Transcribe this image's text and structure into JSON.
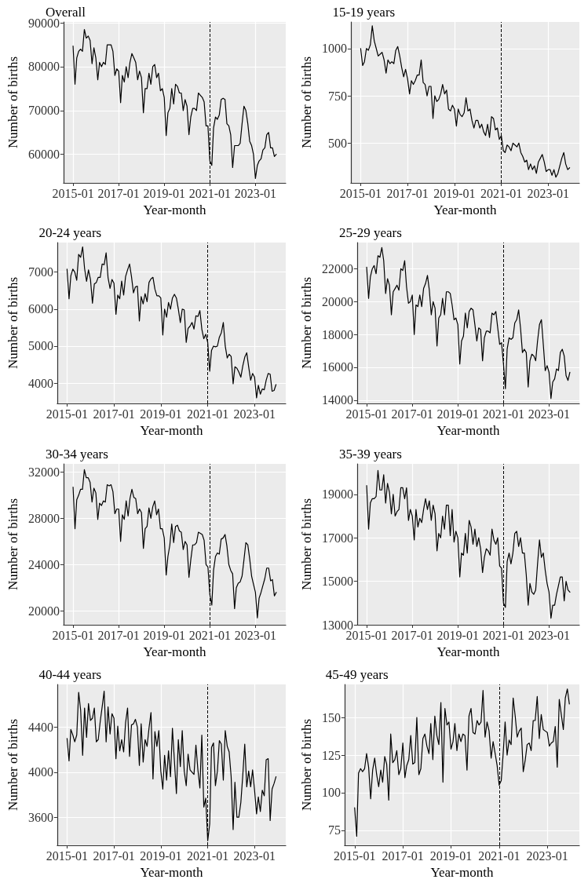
{
  "chart_data": [
    {
      "type": "line",
      "title": "Overall",
      "xlabel": "Year-month",
      "ylabel": "Number of births",
      "color": "#000000",
      "grid": true,
      "marker": "none",
      "xlim": [
        "2014-08",
        "2024-05"
      ],
      "xticks": [
        "2015-01",
        "2017-01",
        "2019-01",
        "2021-01",
        "2023-01"
      ],
      "ylim": [
        53500,
        90200
      ],
      "yticks": [
        60000,
        70000,
        80000,
        90000
      ],
      "ref_lines": [
        {
          "axis": "x",
          "value": "2021-01",
          "line_style": "dashed",
          "color": "#000000"
        }
      ],
      "x": [
        "2015-01",
        "2015-02",
        "2015-03",
        "2015-04",
        "2015-05",
        "2015-06",
        "2015-07",
        "2015-08",
        "2015-09",
        "2015-10",
        "2015-11",
        "2015-12",
        "2016-01",
        "2016-02",
        "2016-03",
        "2016-04",
        "2016-05",
        "2016-06",
        "2016-07",
        "2016-08",
        "2016-09",
        "2016-10",
        "2016-11",
        "2016-12",
        "2017-01",
        "2017-02",
        "2017-03",
        "2017-04",
        "2017-05",
        "2017-06",
        "2017-07",
        "2017-08",
        "2017-09",
        "2017-10",
        "2017-11",
        "2017-12",
        "2018-01",
        "2018-02",
        "2018-03",
        "2018-04",
        "2018-05",
        "2018-06",
        "2018-07",
        "2018-08",
        "2018-09",
        "2018-10",
        "2018-11",
        "2018-12",
        "2019-01",
        "2019-02",
        "2019-03",
        "2019-04",
        "2019-05",
        "2019-06",
        "2019-07",
        "2019-08",
        "2019-09",
        "2019-10",
        "2019-11",
        "2019-12",
        "2020-01",
        "2020-02",
        "2020-03",
        "2020-04",
        "2020-05",
        "2020-06",
        "2020-07",
        "2020-08",
        "2020-09",
        "2020-10",
        "2020-11",
        "2020-12",
        "2021-01",
        "2021-02",
        "2021-03",
        "2021-04",
        "2021-05",
        "2021-06",
        "2021-07",
        "2021-08",
        "2021-09",
        "2021-10",
        "2021-11",
        "2021-12",
        "2022-01",
        "2022-02",
        "2022-03",
        "2022-04",
        "2022-05",
        "2022-06",
        "2022-07",
        "2022-08",
        "2022-09",
        "2022-10",
        "2022-11",
        "2022-12",
        "2023-01",
        "2023-02",
        "2023-03",
        "2023-04",
        "2023-05",
        "2023-06",
        "2023-07",
        "2023-08",
        "2023-09",
        "2023-10",
        "2023-11",
        "2023-12"
      ],
      "values": [
        84700,
        76000,
        82000,
        83500,
        84000,
        83500,
        88500,
        86500,
        87000,
        86000,
        80700,
        84300,
        82000,
        77000,
        81000,
        80000,
        81000,
        80500,
        85000,
        85000,
        85000,
        83500,
        78000,
        79500,
        79000,
        71800,
        78000,
        76500,
        80000,
        77500,
        81000,
        83000,
        82000,
        81000,
        77000,
        79000,
        77500,
        69500,
        75000,
        75000,
        78500,
        76000,
        80000,
        80500,
        77500,
        78500,
        74500,
        75000,
        73000,
        64300,
        69500,
        70500,
        75000,
        71500,
        76000,
        75500,
        74000,
        74000,
        70000,
        72500,
        71000,
        64500,
        68500,
        70500,
        70500,
        70000,
        74000,
        73500,
        73000,
        72000,
        66500,
        66500,
        58500,
        57500,
        66000,
        68500,
        68000,
        69000,
        72500,
        72800,
        72500,
        67000,
        66500,
        64500,
        57000,
        62000,
        62000,
        62000,
        62500,
        67000,
        71000,
        70000,
        67000,
        63000,
        62000,
        60000,
        54500,
        57500,
        58500,
        59000,
        61000,
        61500,
        64500,
        65000,
        61500,
        61500,
        59500,
        60000
      ]
    },
    {
      "type": "line",
      "title": "15-19 years",
      "xlabel": "Year-month",
      "ylabel": "Number of births",
      "color": "#000000",
      "grid": true,
      "marker": "none",
      "xlim": [
        "2014-08",
        "2024-05"
      ],
      "xticks": [
        "2015-01",
        "2017-01",
        "2019-01",
        "2021-01",
        "2023-01"
      ],
      "ylim": [
        290,
        1140
      ],
      "yticks": [
        500,
        750,
        1000
      ],
      "ref_lines": [
        {
          "axis": "x",
          "value": "2021-01",
          "line_style": "dashed",
          "color": "#000000"
        }
      ],
      "x": [
        "2015-01",
        "2015-02",
        "2015-03",
        "2015-04",
        "2015-05",
        "2015-06",
        "2015-07",
        "2015-08",
        "2015-09",
        "2015-10",
        "2015-11",
        "2015-12",
        "2016-01",
        "2016-02",
        "2016-03",
        "2016-04",
        "2016-05",
        "2016-06",
        "2016-07",
        "2016-08",
        "2016-09",
        "2016-10",
        "2016-11",
        "2016-12",
        "2017-01",
        "2017-02",
        "2017-03",
        "2017-04",
        "2017-05",
        "2017-06",
        "2017-07",
        "2017-08",
        "2017-09",
        "2017-10",
        "2017-11",
        "2017-12",
        "2018-01",
        "2018-02",
        "2018-03",
        "2018-04",
        "2018-05",
        "2018-06",
        "2018-07",
        "2018-08",
        "2018-09",
        "2018-10",
        "2018-11",
        "2018-12",
        "2019-01",
        "2019-02",
        "2019-03",
        "2019-04",
        "2019-05",
        "2019-06",
        "2019-07",
        "2019-08",
        "2019-09",
        "2019-10",
        "2019-11",
        "2019-12",
        "2020-01",
        "2020-02",
        "2020-03",
        "2020-04",
        "2020-05",
        "2020-06",
        "2020-07",
        "2020-08",
        "2020-09",
        "2020-10",
        "2020-11",
        "2020-12",
        "2021-01",
        "2021-02",
        "2021-03",
        "2021-04",
        "2021-05",
        "2021-06",
        "2021-07",
        "2021-08",
        "2021-09",
        "2021-10",
        "2021-11",
        "2021-12",
        "2022-01",
        "2022-02",
        "2022-03",
        "2022-04",
        "2022-05",
        "2022-06",
        "2022-07",
        "2022-08",
        "2022-09",
        "2022-10",
        "2022-11",
        "2022-12",
        "2023-01",
        "2023-02",
        "2023-03",
        "2023-04",
        "2023-05",
        "2023-06",
        "2023-07",
        "2023-08",
        "2023-09",
        "2023-10",
        "2023-11",
        "2023-12"
      ],
      "values": [
        1000,
        910,
        930,
        1000,
        990,
        1020,
        1120,
        1040,
        1000,
        960,
        970,
        980,
        940,
        870,
        940,
        920,
        930,
        920,
        990,
        1010,
        960,
        900,
        850,
        890,
        840,
        760,
        830,
        810,
        830,
        860,
        860,
        940,
        820,
        810,
        750,
        800,
        800,
        630,
        750,
        720,
        730,
        760,
        810,
        760,
        780,
        680,
        670,
        700,
        680,
        590,
        680,
        650,
        640,
        660,
        740,
        670,
        680,
        620,
        580,
        620,
        620,
        580,
        600,
        560,
        540,
        600,
        530,
        640,
        630,
        570,
        580,
        520,
        540,
        460,
        450,
        490,
        480,
        460,
        500,
        490,
        480,
        500,
        450,
        430,
        400,
        410,
        360,
        390,
        360,
        380,
        340,
        400,
        420,
        440,
        400,
        350,
        360,
        360,
        330,
        360,
        320,
        340,
        380,
        420,
        450,
        390,
        360,
        370
      ]
    },
    {
      "type": "line",
      "title": "20-24 years",
      "xlabel": "Year-month",
      "ylabel": "Number of births",
      "color": "#000000",
      "grid": true,
      "marker": "none",
      "xlim": [
        "2014-08",
        "2024-05"
      ],
      "xticks": [
        "2015-01",
        "2017-01",
        "2019-01",
        "2021-01",
        "2023-01"
      ],
      "ylim": [
        3450,
        7800
      ],
      "yticks": [
        4000,
        5000,
        6000,
        7000
      ],
      "ref_lines": [
        {
          "axis": "x",
          "value": "2021-01",
          "line_style": "dashed",
          "color": "#000000"
        }
      ],
      "x": [
        "2015-01",
        "2015-02",
        "2015-03",
        "2015-04",
        "2015-05",
        "2015-06",
        "2015-07",
        "2015-08",
        "2015-09",
        "2015-10",
        "2015-11",
        "2015-12",
        "2016-01",
        "2016-02",
        "2016-03",
        "2016-04",
        "2016-05",
        "2016-06",
        "2016-07",
        "2016-08",
        "2016-09",
        "2016-10",
        "2016-11",
        "2016-12",
        "2017-01",
        "2017-02",
        "2017-03",
        "2017-04",
        "2017-05",
        "2017-06",
        "2017-07",
        "2017-08",
        "2017-09",
        "2017-10",
        "2017-11",
        "2017-12",
        "2018-01",
        "2018-02",
        "2018-03",
        "2018-04",
        "2018-05",
        "2018-06",
        "2018-07",
        "2018-08",
        "2018-09",
        "2018-10",
        "2018-11",
        "2018-12",
        "2019-01",
        "2019-02",
        "2019-03",
        "2019-04",
        "2019-05",
        "2019-06",
        "2019-07",
        "2019-08",
        "2019-09",
        "2019-10",
        "2019-11",
        "2019-12",
        "2020-01",
        "2020-02",
        "2020-03",
        "2020-04",
        "2020-05",
        "2020-06",
        "2020-07",
        "2020-08",
        "2020-09",
        "2020-10",
        "2020-11",
        "2020-12",
        "2021-01",
        "2021-02",
        "2021-03",
        "2021-04",
        "2021-05",
        "2021-06",
        "2021-07",
        "2021-08",
        "2021-09",
        "2021-10",
        "2021-11",
        "2021-12",
        "2022-01",
        "2022-02",
        "2022-03",
        "2022-04",
        "2022-05",
        "2022-06",
        "2022-07",
        "2022-08",
        "2022-09",
        "2022-10",
        "2022-11",
        "2022-12",
        "2023-01",
        "2023-02",
        "2023-03",
        "2023-04",
        "2023-05",
        "2023-06",
        "2023-07",
        "2023-08",
        "2023-09",
        "2023-10",
        "2023-11",
        "2023-12"
      ],
      "values": [
        7080,
        6280,
        6900,
        7080,
        7000,
        6780,
        7480,
        7400,
        7680,
        7100,
        6750,
        7060,
        6800,
        6160,
        6680,
        6720,
        6860,
        6860,
        7220,
        7200,
        7520,
        6850,
        6560,
        6800,
        6700,
        5860,
        6380,
        6280,
        6760,
        6380,
        6880,
        7060,
        7220,
        6880,
        6440,
        6600,
        6620,
        5680,
        6340,
        6140,
        6420,
        6200,
        6720,
        6820,
        6860,
        6540,
        6360,
        6360,
        6300,
        5300,
        6000,
        5780,
        6180,
        6000,
        6300,
        6400,
        6300,
        6000,
        5640,
        6000,
        5980,
        5100,
        5480,
        5540,
        5640,
        5460,
        5820,
        5800,
        5960,
        5460,
        5200,
        5320,
        5100,
        4320,
        4880,
        5000,
        4980,
        5000,
        5240,
        5360,
        5640,
        5000,
        4680,
        4780,
        4720,
        3980,
        4440,
        4400,
        4300,
        4160,
        4460,
        4700,
        4820,
        4440,
        4080,
        4260,
        4160,
        3600,
        3940,
        3700,
        3840,
        3820,
        4080,
        4260,
        4240,
        3780,
        3800,
        3960
      ]
    },
    {
      "type": "line",
      "title": "25-29 years",
      "xlabel": "Year-month",
      "ylabel": "Number of births",
      "color": "#000000",
      "grid": true,
      "marker": "none",
      "xlim": [
        "2014-08",
        "2024-05"
      ],
      "xticks": [
        "2015-01",
        "2017-01",
        "2019-01",
        "2021-01",
        "2023-01"
      ],
      "ylim": [
        13800,
        23600
      ],
      "yticks": [
        14000,
        16000,
        18000,
        20000,
        22000
      ],
      "ref_lines": [
        {
          "axis": "x",
          "value": "2021-01",
          "line_style": "dashed",
          "color": "#000000"
        }
      ],
      "x": [
        "2015-01",
        "2015-02",
        "2015-03",
        "2015-04",
        "2015-05",
        "2015-06",
        "2015-07",
        "2015-08",
        "2015-09",
        "2015-10",
        "2015-11",
        "2015-12",
        "2016-01",
        "2016-02",
        "2016-03",
        "2016-04",
        "2016-05",
        "2016-06",
        "2016-07",
        "2016-08",
        "2016-09",
        "2016-10",
        "2016-11",
        "2016-12",
        "2017-01",
        "2017-02",
        "2017-03",
        "2017-04",
        "2017-05",
        "2017-06",
        "2017-07",
        "2017-08",
        "2017-09",
        "2017-10",
        "2017-11",
        "2017-12",
        "2018-01",
        "2018-02",
        "2018-03",
        "2018-04",
        "2018-05",
        "2018-06",
        "2018-07",
        "2018-08",
        "2018-09",
        "2018-10",
        "2018-11",
        "2018-12",
        "2019-01",
        "2019-02",
        "2019-03",
        "2019-04",
        "2019-05",
        "2019-06",
        "2019-07",
        "2019-08",
        "2019-09",
        "2019-10",
        "2019-11",
        "2019-12",
        "2020-01",
        "2020-02",
        "2020-03",
        "2020-04",
        "2020-05",
        "2020-06",
        "2020-07",
        "2020-08",
        "2020-09",
        "2020-10",
        "2020-11",
        "2020-12",
        "2021-01",
        "2021-02",
        "2021-03",
        "2021-04",
        "2021-05",
        "2021-06",
        "2021-07",
        "2021-08",
        "2021-09",
        "2021-10",
        "2021-11",
        "2021-12",
        "2022-01",
        "2022-02",
        "2022-03",
        "2022-04",
        "2022-05",
        "2022-06",
        "2022-07",
        "2022-08",
        "2022-09",
        "2022-10",
        "2022-11",
        "2022-12",
        "2023-01",
        "2023-02",
        "2023-03",
        "2023-04",
        "2023-05",
        "2023-06",
        "2023-07",
        "2023-08",
        "2023-09",
        "2023-10",
        "2023-11",
        "2023-12"
      ],
      "values": [
        22100,
        20200,
        21500,
        22000,
        22200,
        21700,
        22800,
        22700,
        23300,
        22500,
        20500,
        21400,
        21000,
        19200,
        20600,
        20800,
        21000,
        20700,
        22000,
        21900,
        22500,
        20900,
        19900,
        20000,
        20400,
        18000,
        19800,
        19700,
        20400,
        19700,
        20800,
        21100,
        21600,
        20700,
        19200,
        20000,
        19600,
        17300,
        19000,
        19200,
        20200,
        19200,
        20600,
        20600,
        20500,
        19800,
        18900,
        19000,
        18600,
        16200,
        17600,
        17900,
        19300,
        18400,
        19400,
        19600,
        19500,
        18600,
        17600,
        18400,
        18300,
        16400,
        17800,
        18200,
        18200,
        18100,
        19300,
        19200,
        19400,
        18400,
        17400,
        17500,
        16200,
        14700,
        17100,
        17800,
        17700,
        17800,
        18700,
        18900,
        19500,
        18400,
        16900,
        17100,
        16900,
        14800,
        16400,
        16800,
        16700,
        16400,
        17600,
        18600,
        18900,
        17400,
        15800,
        16100,
        15700,
        14100,
        15100,
        15300,
        15900,
        15800,
        16900,
        17100,
        16700,
        15500,
        15200,
        15700
      ]
    },
    {
      "type": "line",
      "title": "30-34 years",
      "xlabel": "Year-month",
      "ylabel": "Number of births",
      "color": "#000000",
      "grid": true,
      "marker": "none",
      "xlim": [
        "2014-08",
        "2024-05"
      ],
      "xticks": [
        "2015-01",
        "2017-01",
        "2019-01",
        "2021-01",
        "2023-01"
      ],
      "ylim": [
        18800,
        32700
      ],
      "yticks": [
        20000,
        24000,
        28000,
        32000
      ],
      "ref_lines": [
        {
          "axis": "x",
          "value": "2021-01",
          "line_style": "dashed",
          "color": "#000000"
        }
      ],
      "x": [
        "2015-01",
        "2015-02",
        "2015-03",
        "2015-04",
        "2015-05",
        "2015-06",
        "2015-07",
        "2015-08",
        "2015-09",
        "2015-10",
        "2015-11",
        "2015-12",
        "2016-01",
        "2016-02",
        "2016-03",
        "2016-04",
        "2016-05",
        "2016-06",
        "2016-07",
        "2016-08",
        "2016-09",
        "2016-10",
        "2016-11",
        "2016-12",
        "2017-01",
        "2017-02",
        "2017-03",
        "2017-04",
        "2017-05",
        "2017-06",
        "2017-07",
        "2017-08",
        "2017-09",
        "2017-10",
        "2017-11",
        "2017-12",
        "2018-01",
        "2018-02",
        "2018-03",
        "2018-04",
        "2018-05",
        "2018-06",
        "2018-07",
        "2018-08",
        "2018-09",
        "2018-10",
        "2018-11",
        "2018-12",
        "2019-01",
        "2019-02",
        "2019-03",
        "2019-04",
        "2019-05",
        "2019-06",
        "2019-07",
        "2019-08",
        "2019-09",
        "2019-10",
        "2019-11",
        "2019-12",
        "2020-01",
        "2020-02",
        "2020-03",
        "2020-04",
        "2020-05",
        "2020-06",
        "2020-07",
        "2020-08",
        "2020-09",
        "2020-10",
        "2020-11",
        "2020-12",
        "2021-01",
        "2021-02",
        "2021-03",
        "2021-04",
        "2021-05",
        "2021-06",
        "2021-07",
        "2021-08",
        "2021-09",
        "2021-10",
        "2021-11",
        "2021-12",
        "2022-01",
        "2022-02",
        "2022-03",
        "2022-04",
        "2022-05",
        "2022-06",
        "2022-07",
        "2022-08",
        "2022-09",
        "2022-10",
        "2022-11",
        "2022-12",
        "2023-01",
        "2023-02",
        "2023-03",
        "2023-04",
        "2023-05",
        "2023-06",
        "2023-07",
        "2023-08",
        "2023-09",
        "2023-10",
        "2023-11",
        "2023-12"
      ],
      "values": [
        30700,
        27100,
        29600,
        30000,
        30500,
        30500,
        32200,
        31500,
        31500,
        31100,
        29400,
        30600,
        30200,
        27900,
        29300,
        29100,
        29500,
        29400,
        30900,
        30800,
        30900,
        30300,
        28400,
        28800,
        28800,
        26000,
        28300,
        27900,
        29500,
        28200,
        29700,
        30500,
        29800,
        29700,
        28400,
        28800,
        28500,
        25400,
        27100,
        27300,
        28900,
        28000,
        29000,
        29500,
        28300,
        28800,
        27100,
        27100,
        26300,
        23100,
        24700,
        25700,
        27500,
        25900,
        27300,
        27400,
        26900,
        26800,
        25300,
        26000,
        25700,
        22900,
        24400,
        25700,
        25700,
        25900,
        26800,
        26700,
        26600,
        26100,
        24000,
        23800,
        21400,
        20500,
        23500,
        24700,
        25000,
        24900,
        26200,
        26300,
        26600,
        25600,
        24000,
        23500,
        23200,
        20200,
        22000,
        22400,
        22500,
        23000,
        24400,
        25900,
        25700,
        24500,
        23000,
        22300,
        21600,
        19400,
        21100,
        21600,
        22200,
        22800,
        23700,
        23700,
        22600,
        22700,
        21300,
        21600
      ]
    },
    {
      "type": "line",
      "title": "35-39 years",
      "xlabel": "Year-month",
      "ylabel": "Number of births",
      "color": "#000000",
      "grid": true,
      "marker": "none",
      "xlim": [
        "2014-08",
        "2024-05"
      ],
      "xticks": [
        "2015-01",
        "2017-01",
        "2019-01",
        "2021-01",
        "2023-01"
      ],
      "ylim": [
        13000,
        20400
      ],
      "yticks": [
        13000,
        15000,
        17000,
        19000
      ],
      "ref_lines": [
        {
          "axis": "x",
          "value": "2021-01",
          "line_style": "dashed",
          "color": "#000000"
        }
      ],
      "x": [
        "2015-01",
        "2015-02",
        "2015-03",
        "2015-04",
        "2015-05",
        "2015-06",
        "2015-07",
        "2015-08",
        "2015-09",
        "2015-10",
        "2015-11",
        "2015-12",
        "2016-01",
        "2016-02",
        "2016-03",
        "2016-04",
        "2016-05",
        "2016-06",
        "2016-07",
        "2016-08",
        "2016-09",
        "2016-10",
        "2016-11",
        "2016-12",
        "2017-01",
        "2017-02",
        "2017-03",
        "2017-04",
        "2017-05",
        "2017-06",
        "2017-07",
        "2017-08",
        "2017-09",
        "2017-10",
        "2017-11",
        "2017-12",
        "2018-01",
        "2018-02",
        "2018-03",
        "2018-04",
        "2018-05",
        "2018-06",
        "2018-07",
        "2018-08",
        "2018-09",
        "2018-10",
        "2018-11",
        "2018-12",
        "2019-01",
        "2019-02",
        "2019-03",
        "2019-04",
        "2019-05",
        "2019-06",
        "2019-07",
        "2019-08",
        "2019-09",
        "2019-10",
        "2019-11",
        "2019-12",
        "2020-01",
        "2020-02",
        "2020-03",
        "2020-04",
        "2020-05",
        "2020-06",
        "2020-07",
        "2020-08",
        "2020-09",
        "2020-10",
        "2020-11",
        "2020-12",
        "2021-01",
        "2021-02",
        "2021-03",
        "2021-04",
        "2021-05",
        "2021-06",
        "2021-07",
        "2021-08",
        "2021-09",
        "2021-10",
        "2021-11",
        "2021-12",
        "2022-01",
        "2022-02",
        "2022-03",
        "2022-04",
        "2022-05",
        "2022-06",
        "2022-07",
        "2022-08",
        "2022-09",
        "2022-10",
        "2022-11",
        "2022-12",
        "2023-01",
        "2023-02",
        "2023-03",
        "2023-04",
        "2023-05",
        "2023-06",
        "2023-07",
        "2023-08",
        "2023-09",
        "2023-10",
        "2023-11",
        "2023-12"
      ],
      "values": [
        19400,
        17400,
        18600,
        18800,
        18800,
        18900,
        20100,
        19200,
        19200,
        19900,
        18600,
        19500,
        19100,
        18100,
        19000,
        18000,
        18200,
        18300,
        19300,
        19300,
        18800,
        19300,
        17800,
        18300,
        18000,
        16900,
        18300,
        17500,
        17900,
        17700,
        18300,
        18800,
        18300,
        18700,
        17800,
        18500,
        18100,
        16400,
        17200,
        17000,
        18000,
        17400,
        18500,
        18500,
        17100,
        18300,
        16800,
        17300,
        17000,
        15200,
        16300,
        16200,
        17200,
        16300,
        17800,
        17500,
        16700,
        17400,
        16600,
        17000,
        16500,
        15400,
        16100,
        16500,
        16400,
        16200,
        17400,
        16900,
        16700,
        17000,
        15700,
        15600,
        14000,
        13800,
        15900,
        16300,
        15800,
        16300,
        17200,
        17300,
        16600,
        17000,
        16300,
        16300,
        15300,
        13900,
        14900,
        14500,
        14400,
        14600,
        15800,
        16900,
        16100,
        16300,
        15500,
        14900,
        14500,
        13300,
        13900,
        13900,
        14400,
        14800,
        15200,
        15200,
        14100,
        15000,
        14600,
        14500
      ]
    },
    {
      "type": "line",
      "title": "40-44 years",
      "xlabel": "Year-month",
      "ylabel": "Number of births",
      "color": "#000000",
      "grid": true,
      "marker": "none",
      "xlim": [
        "2014-08",
        "2024-05"
      ],
      "xticks": [
        "2015-01",
        "2017-01",
        "2019-01",
        "2021-01",
        "2023-01"
      ],
      "ylim": [
        3350,
        4780
      ],
      "yticks": [
        3600,
        4000,
        4400
      ],
      "ref_lines": [
        {
          "axis": "x",
          "value": "2021-01",
          "line_style": "dashed",
          "color": "#000000"
        }
      ],
      "x": [
        "2015-01",
        "2015-02",
        "2015-03",
        "2015-04",
        "2015-05",
        "2015-06",
        "2015-07",
        "2015-08",
        "2015-09",
        "2015-10",
        "2015-11",
        "2015-12",
        "2016-01",
        "2016-02",
        "2016-03",
        "2016-04",
        "2016-05",
        "2016-06",
        "2016-07",
        "2016-08",
        "2016-09",
        "2016-10",
        "2016-11",
        "2016-12",
        "2017-01",
        "2017-02",
        "2017-03",
        "2017-04",
        "2017-05",
        "2017-06",
        "2017-07",
        "2017-08",
        "2017-09",
        "2017-10",
        "2017-11",
        "2017-12",
        "2018-01",
        "2018-02",
        "2018-03",
        "2018-04",
        "2018-05",
        "2018-06",
        "2018-07",
        "2018-08",
        "2018-09",
        "2018-10",
        "2018-11",
        "2018-12",
        "2019-01",
        "2019-02",
        "2019-03",
        "2019-04",
        "2019-05",
        "2019-06",
        "2019-07",
        "2019-08",
        "2019-09",
        "2019-10",
        "2019-11",
        "2019-12",
        "2020-01",
        "2020-02",
        "2020-03",
        "2020-04",
        "2020-05",
        "2020-06",
        "2020-07",
        "2020-08",
        "2020-09",
        "2020-10",
        "2020-11",
        "2020-12",
        "2021-01",
        "2021-02",
        "2021-03",
        "2021-04",
        "2021-05",
        "2021-06",
        "2021-07",
        "2021-08",
        "2021-09",
        "2021-10",
        "2021-11",
        "2021-12",
        "2022-01",
        "2022-02",
        "2022-03",
        "2022-04",
        "2022-05",
        "2022-06",
        "2022-07",
        "2022-08",
        "2022-09",
        "2022-10",
        "2022-11",
        "2022-12",
        "2023-01",
        "2023-02",
        "2023-03",
        "2023-04",
        "2023-05",
        "2023-06",
        "2023-07",
        "2023-08",
        "2023-09",
        "2023-10",
        "2023-11",
        "2023-12"
      ],
      "values": [
        4300,
        4100,
        4380,
        4330,
        4270,
        4330,
        4710,
        4550,
        4150,
        4570,
        4310,
        4610,
        4460,
        4480,
        4570,
        4270,
        4290,
        4450,
        4580,
        4720,
        4270,
        4580,
        4340,
        4520,
        4480,
        4120,
        4410,
        4190,
        4290,
        4180,
        4440,
        4570,
        4140,
        4420,
        4430,
        4470,
        4400,
        4060,
        4430,
        4090,
        4290,
        4230,
        4390,
        4530,
        3940,
        4360,
        4230,
        4370,
        4010,
        3850,
        4150,
        3930,
        4190,
        3960,
        4390,
        4100,
        3810,
        4290,
        4050,
        4370,
        4010,
        3880,
        4160,
        4020,
        4000,
        3980,
        4240,
        4020,
        3860,
        4330,
        3690,
        3770,
        3390,
        3540,
        4220,
        4260,
        3880,
        4010,
        4280,
        4250,
        3930,
        4370,
        4230,
        4180,
        3960,
        3490,
        3910,
        3600,
        3600,
        3730,
        3970,
        4250,
        3870,
        4010,
        3870,
        4020,
        3840,
        3630,
        3780,
        3650,
        3840,
        3790,
        4110,
        4120,
        3570,
        3850,
        3900,
        3960
      ]
    },
    {
      "type": "line",
      "title": "45-49 years",
      "xlabel": "Year-month",
      "ylabel": "Number of births",
      "color": "#000000",
      "grid": true,
      "marker": "none",
      "xlim": [
        "2014-08",
        "2024-05"
      ],
      "xticks": [
        "2015-01",
        "2017-01",
        "2019-01",
        "2021-01",
        "2023-01"
      ],
      "ylim": [
        65,
        172
      ],
      "yticks": [
        75,
        100,
        125,
        150
      ],
      "ref_lines": [
        {
          "axis": "x",
          "value": "2021-01",
          "line_style": "dashed",
          "color": "#000000"
        }
      ],
      "x": [
        "2015-01",
        "2015-02",
        "2015-03",
        "2015-04",
        "2015-05",
        "2015-06",
        "2015-07",
        "2015-08",
        "2015-09",
        "2015-10",
        "2015-11",
        "2015-12",
        "2016-01",
        "2016-02",
        "2016-03",
        "2016-04",
        "2016-05",
        "2016-06",
        "2016-07",
        "2016-08",
        "2016-09",
        "2016-10",
        "2016-11",
        "2016-12",
        "2017-01",
        "2017-02",
        "2017-03",
        "2017-04",
        "2017-05",
        "2017-06",
        "2017-07",
        "2017-08",
        "2017-09",
        "2017-10",
        "2017-11",
        "2017-12",
        "2018-01",
        "2018-02",
        "2018-03",
        "2018-04",
        "2018-05",
        "2018-06",
        "2018-07",
        "2018-08",
        "2018-09",
        "2018-10",
        "2018-11",
        "2018-12",
        "2019-01",
        "2019-02",
        "2019-03",
        "2019-04",
        "2019-05",
        "2019-06",
        "2019-07",
        "2019-08",
        "2019-09",
        "2019-10",
        "2019-11",
        "2019-12",
        "2020-01",
        "2020-02",
        "2020-03",
        "2020-04",
        "2020-05",
        "2020-06",
        "2020-07",
        "2020-08",
        "2020-09",
        "2020-10",
        "2020-11",
        "2020-12",
        "2021-01",
        "2021-02",
        "2021-03",
        "2021-04",
        "2021-05",
        "2021-06",
        "2021-07",
        "2021-08",
        "2021-09",
        "2021-10",
        "2021-11",
        "2021-12",
        "2022-01",
        "2022-02",
        "2022-03",
        "2022-04",
        "2022-05",
        "2022-06",
        "2022-07",
        "2022-08",
        "2022-09",
        "2022-10",
        "2022-11",
        "2022-12",
        "2023-01",
        "2023-02",
        "2023-03",
        "2023-04",
        "2023-05",
        "2023-06",
        "2023-07",
        "2023-08",
        "2023-09",
        "2023-10",
        "2023-11",
        "2023-12"
      ],
      "values": [
        90,
        71,
        113,
        116,
        114,
        116,
        126,
        117,
        96,
        115,
        123,
        112,
        104,
        115,
        107,
        124,
        119,
        95,
        139,
        120,
        122,
        128,
        112,
        116,
        133,
        110,
        118,
        122,
        138,
        119,
        120,
        150,
        112,
        116,
        136,
        139,
        131,
        126,
        146,
        122,
        151,
        138,
        132,
        160,
        107,
        156,
        145,
        147,
        129,
        134,
        146,
        128,
        139,
        134,
        139,
        138,
        115,
        151,
        156,
        140,
        139,
        148,
        145,
        147,
        168,
        137,
        147,
        141,
        123,
        134,
        126,
        118,
        105,
        108,
        125,
        147,
        125,
        135,
        132,
        163,
        151,
        137,
        141,
        143,
        114,
        122,
        132,
        133,
        128,
        148,
        148,
        164,
        136,
        152,
        142,
        141,
        140,
        131,
        133,
        134,
        144,
        117,
        162,
        152,
        142,
        163,
        169,
        159
      ]
    }
  ]
}
